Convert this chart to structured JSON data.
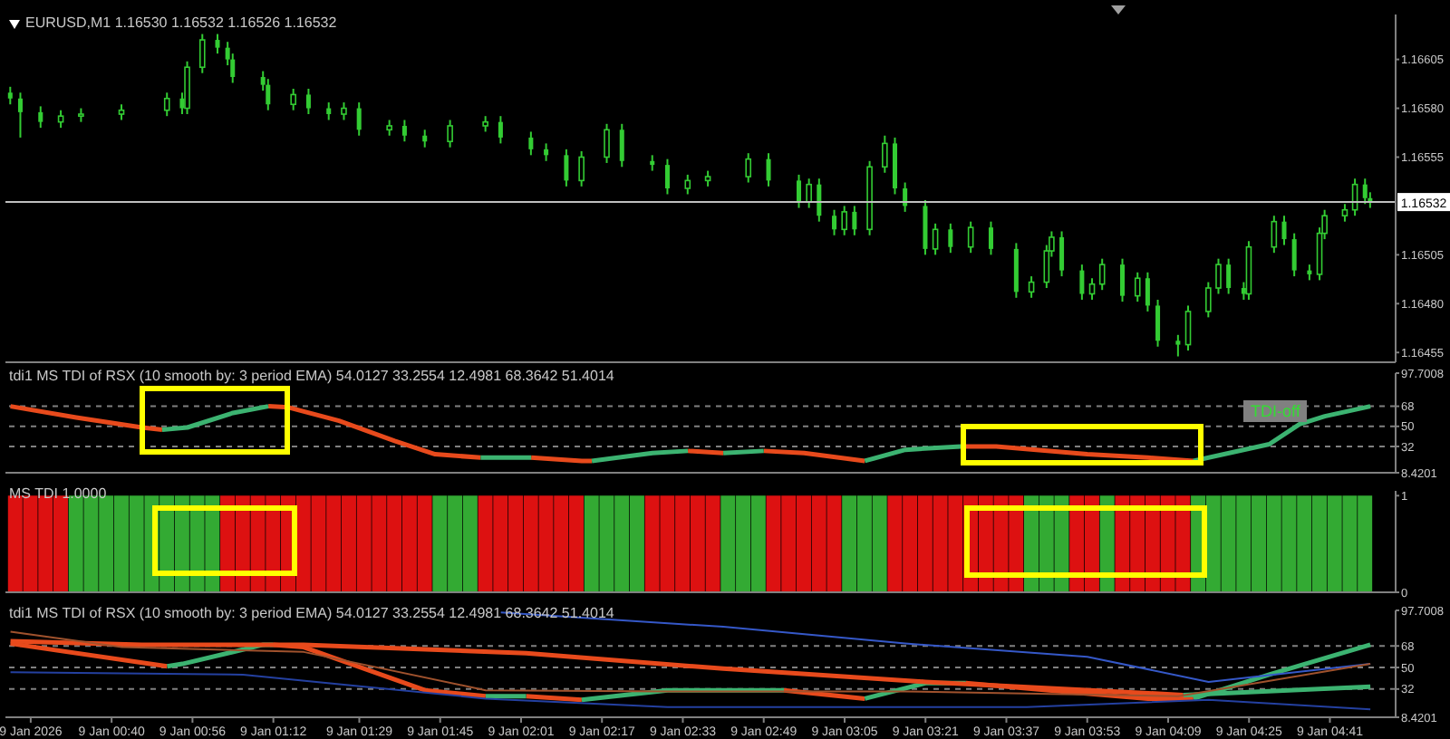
{
  "chart_data": [
    {
      "type": "candlestick",
      "title": "EURUSD,M1 1.16530 1.16532 1.16526 1.16532",
      "color": "#33cc33",
      "xlim": [
        "2026-01-09T00:19",
        "2026-01-09T04:54"
      ],
      "ylim": [
        1.1645,
        1.16628
      ],
      "tick_labels": "y",
      "yticks": [
        1.16455,
        {
          "value": 1.1648,
          "label": "1.16480"
        },
        1.16505,
        1.16555,
        {
          "value": 1.1658,
          "label": "1.16580"
        },
        1.16605
      ],
      "ref_lines": [
        {
          "axis": "y",
          "value": 1.16532,
          "label": "1.16532",
          "color": "#c0c0c0",
          "line_style": "solid"
        }
      ],
      "x": [
        "2026-01-09T00:20",
        "2026-01-09T00:22",
        "2026-01-09T00:26",
        "2026-01-09T00:30",
        "2026-01-09T00:34",
        "2026-01-09T00:42",
        "2026-01-09T00:51",
        "2026-01-09T00:54",
        "2026-01-09T00:55",
        "2026-01-09T00:58",
        "2026-01-09T01:01",
        "2026-01-09T01:03",
        "2026-01-09T01:04",
        "2026-01-09T01:10",
        "2026-01-09T01:11",
        "2026-01-09T01:16",
        "2026-01-09T01:19",
        "2026-01-09T01:23",
        "2026-01-09T01:26",
        "2026-01-09T01:29",
        "2026-01-09T01:35",
        "2026-01-09T01:38",
        "2026-01-09T01:42",
        "2026-01-09T01:47",
        "2026-01-09T01:54",
        "2026-01-09T01:57",
        "2026-01-09T02:03",
        "2026-01-09T02:06",
        "2026-01-09T02:10",
        "2026-01-09T02:13",
        "2026-01-09T02:18",
        "2026-01-09T02:21",
        "2026-01-09T02:27",
        "2026-01-09T02:30",
        "2026-01-09T02:34",
        "2026-01-09T02:38",
        "2026-01-09T02:46",
        "2026-01-09T02:50",
        "2026-01-09T02:56",
        "2026-01-09T02:58",
        "2026-01-09T03:00",
        "2026-01-09T03:03",
        "2026-01-09T03:05",
        "2026-01-09T03:07",
        "2026-01-09T03:10",
        "2026-01-09T03:13",
        "2026-01-09T03:15",
        "2026-01-09T03:17",
        "2026-01-09T03:21",
        "2026-01-09T03:23",
        "2026-01-09T03:26",
        "2026-01-09T03:30",
        "2026-01-09T03:34",
        "2026-01-09T03:39",
        "2026-01-09T03:42",
        "2026-01-09T03:45",
        "2026-01-09T03:46",
        "2026-01-09T03:48",
        "2026-01-09T03:52",
        "2026-01-09T03:54",
        "2026-01-09T03:56",
        "2026-01-09T04:00",
        "2026-01-09T04:03",
        "2026-01-09T04:05",
        "2026-01-09T04:07",
        "2026-01-09T04:11",
        "2026-01-09T04:13",
        "2026-01-09T04:17",
        "2026-01-09T04:19",
        "2026-01-09T04:21",
        "2026-01-09T04:24",
        "2026-01-09T04:25",
        "2026-01-09T04:30",
        "2026-01-09T04:32",
        "2026-01-09T04:34",
        "2026-01-09T04:37",
        "2026-01-09T04:39",
        "2026-01-09T04:40",
        "2026-01-09T04:44",
        "2026-01-09T04:46",
        "2026-01-09T04:48",
        "2026-01-09T04:49"
      ],
      "ohlc": [
        [
          1.16588,
          1.16591,
          1.16582,
          1.16585
        ],
        [
          1.16585,
          1.16588,
          1.16565,
          1.16578
        ],
        [
          1.16578,
          1.16581,
          1.1657,
          1.16573
        ],
        [
          1.16573,
          1.16579,
          1.1657,
          1.16576
        ],
        [
          1.16576,
          1.1658,
          1.16573,
          1.16577
        ],
        [
          1.16577,
          1.16582,
          1.16574,
          1.16579
        ],
        [
          1.16579,
          1.16588,
          1.16576,
          1.16585
        ],
        [
          1.16585,
          1.16588,
          1.16577,
          1.1658
        ],
        [
          1.1658,
          1.16604,
          1.16577,
          1.16601
        ],
        [
          1.16601,
          1.16618,
          1.16598,
          1.16615
        ],
        [
          1.16615,
          1.16618,
          1.16608,
          1.16611
        ],
        [
          1.16611,
          1.16614,
          1.16602,
          1.16605
        ],
        [
          1.16605,
          1.16608,
          1.16593,
          1.16596
        ],
        [
          1.16596,
          1.16599,
          1.16589,
          1.16592
        ],
        [
          1.16592,
          1.16595,
          1.16579,
          1.16582
        ],
        [
          1.16582,
          1.1659,
          1.16579,
          1.16587
        ],
        [
          1.16587,
          1.1659,
          1.16577,
          1.1658
        ],
        [
          1.1658,
          1.16583,
          1.16574,
          1.16577
        ],
        [
          1.16577,
          1.16583,
          1.16574,
          1.1658
        ],
        [
          1.1658,
          1.16583,
          1.16566,
          1.16569
        ],
        [
          1.16569,
          1.16574,
          1.16566,
          1.16571
        ],
        [
          1.16571,
          1.16574,
          1.16563,
          1.16566
        ],
        [
          1.16566,
          1.16569,
          1.1656,
          1.16563
        ],
        [
          1.16563,
          1.16574,
          1.1656,
          1.16571
        ],
        [
          1.16571,
          1.16576,
          1.16568,
          1.16573
        ],
        [
          1.16573,
          1.16576,
          1.16562,
          1.16565
        ],
        [
          1.16565,
          1.16568,
          1.16556,
          1.16559
        ],
        [
          1.16559,
          1.16562,
          1.16553,
          1.16556
        ],
        [
          1.16556,
          1.16559,
          1.1654,
          1.16543
        ],
        [
          1.16543,
          1.16558,
          1.1654,
          1.16555
        ],
        [
          1.16555,
          1.16572,
          1.16552,
          1.16569
        ],
        [
          1.16569,
          1.16572,
          1.1655,
          1.16553
        ],
        [
          1.16553,
          1.16556,
          1.16548,
          1.16551
        ],
        [
          1.16551,
          1.16554,
          1.16536,
          1.16539
        ],
        [
          1.16539,
          1.16546,
          1.16536,
          1.16543
        ],
        [
          1.16543,
          1.16548,
          1.1654,
          1.16545
        ],
        [
          1.16545,
          1.16557,
          1.16542,
          1.16554
        ],
        [
          1.16554,
          1.16557,
          1.1654,
          1.16543
        ],
        [
          1.16543,
          1.16546,
          1.16529,
          1.16532
        ],
        [
          1.16532,
          1.16544,
          1.16529,
          1.16541
        ],
        [
          1.16541,
          1.16544,
          1.16522,
          1.16525
        ],
        [
          1.16525,
          1.16528,
          1.16515,
          1.16518
        ],
        [
          1.16518,
          1.1653,
          1.16515,
          1.16527
        ],
        [
          1.16527,
          1.1653,
          1.16515,
          1.16518
        ],
        [
          1.16518,
          1.16553,
          1.16515,
          1.1655
        ],
        [
          1.1655,
          1.16566,
          1.16547,
          1.16562
        ],
        [
          1.16562,
          1.16565,
          1.16536,
          1.16539
        ],
        [
          1.16539,
          1.16542,
          1.16527,
          1.1653
        ],
        [
          1.1653,
          1.16533,
          1.16505,
          1.16508
        ],
        [
          1.16508,
          1.16521,
          1.16505,
          1.16518
        ],
        [
          1.16518,
          1.16521,
          1.16506,
          1.16509
        ],
        [
          1.16509,
          1.16522,
          1.16506,
          1.16519
        ],
        [
          1.16519,
          1.16522,
          1.16505,
          1.16508
        ],
        [
          1.16508,
          1.16511,
          1.16483,
          1.16486
        ],
        [
          1.16486,
          1.16494,
          1.16483,
          1.16491
        ],
        [
          1.16491,
          1.1651,
          1.16488,
          1.16507
        ],
        [
          1.16507,
          1.16517,
          1.16504,
          1.16514
        ],
        [
          1.16514,
          1.16517,
          1.16494,
          1.16497
        ],
        [
          1.16497,
          1.165,
          1.16482,
          1.16485
        ],
        [
          1.16485,
          1.16493,
          1.16482,
          1.1649
        ],
        [
          1.1649,
          1.16503,
          1.16487,
          1.165
        ],
        [
          1.165,
          1.16503,
          1.16481,
          1.16484
        ],
        [
          1.16484,
          1.16496,
          1.16481,
          1.16493
        ],
        [
          1.16493,
          1.16496,
          1.16476,
          1.16479
        ],
        [
          1.16479,
          1.16482,
          1.16458,
          1.16461
        ],
        [
          1.16461,
          1.16464,
          1.16453,
          1.16459
        ],
        [
          1.16459,
          1.16479,
          1.16456,
          1.16476
        ],
        [
          1.16476,
          1.16491,
          1.16473,
          1.16488
        ],
        [
          1.16488,
          1.16503,
          1.16485,
          1.165
        ],
        [
          1.165,
          1.16503,
          1.16485,
          1.16488
        ],
        [
          1.16488,
          1.16491,
          1.16482,
          1.16485
        ],
        [
          1.16485,
          1.16512,
          1.16482,
          1.16509
        ],
        [
          1.16509,
          1.16525,
          1.16506,
          1.16522
        ],
        [
          1.16522,
          1.16525,
          1.1651,
          1.16513
        ],
        [
          1.16513,
          1.16516,
          1.16494,
          1.16497
        ],
        [
          1.16497,
          1.165,
          1.16492,
          1.16495
        ],
        [
          1.16495,
          1.16519,
          1.16492,
          1.16516
        ],
        [
          1.16516,
          1.16528,
          1.16513,
          1.16525
        ],
        [
          1.16525,
          1.16531,
          1.16522,
          1.16528
        ],
        [
          1.16528,
          1.16544,
          1.16525,
          1.16541
        ],
        [
          1.16541,
          1.16544,
          1.16531,
          1.16534
        ],
        [
          1.16534,
          1.16537,
          1.16529,
          1.16532
        ]
      ]
    },
    {
      "type": "line",
      "title": "tdi1 MS TDI of RSX (10 smooth by: 3 period EMA) 54.0127 33.2554 12.4981 68.3642 51.4014",
      "xlim": [
        "2026-01-09T00:19",
        "2026-01-09T04:54"
      ],
      "ylim": [
        8.4201,
        97.7008
      ],
      "yticks": [
        8.4201,
        32,
        50,
        68,
        97.7008
      ],
      "tick_labels": "y",
      "annotations": [
        "TDI-off"
      ],
      "ref_lines": [
        {
          "axis": "y",
          "value": 68,
          "color": "#808080",
          "line_style": "dashed"
        },
        {
          "axis": "y",
          "value": 50,
          "color": "#808080",
          "line_style": "dashed"
        },
        {
          "axis": "y",
          "value": 32,
          "color": "#808080",
          "line_style": "dashed"
        }
      ],
      "series": [
        {
          "color": "#e84a1c",
          "x": [
            "2026-01-09T00:20",
            "2026-01-09T00:33",
            "2026-01-09T00:46",
            "2026-01-09T00:50",
            "2026-01-09T00:54",
            "2026-01-09T01:11",
            "2026-01-09T01:15",
            "2026-01-09T01:25",
            "2026-01-09T01:36",
            "2026-01-09T01:44",
            "2026-01-09T01:53",
            "2026-01-09T01:57",
            "2026-01-09T02:03",
            "2026-01-09T02:13",
            "2026-01-09T02:15",
            "2026-01-09T02:18",
            "2026-01-09T02:34",
            "2026-01-09T02:41",
            "2026-01-09T02:45",
            "2026-01-09T02:49",
            "2026-01-09T02:57",
            "2026-01-09T03:09",
            "2026-01-09T03:12",
            "2026-01-09T03:28",
            "2026-01-09T03:35",
            "2026-01-09T03:53",
            "2026-01-09T04:05",
            "2026-01-09T04:14"
          ],
          "values": [
            68,
            58,
            49,
            47,
            null,
            68,
            67,
            55,
            37,
            25,
            22,
            null,
            22,
            19,
            19,
            null,
            28,
            26,
            null,
            28,
            26,
            19,
            null,
            32,
            32,
            25,
            22,
            19
          ]
        },
        {
          "color": "#3cb371",
          "x": [
            "2026-01-09T00:50",
            "2026-01-09T00:55",
            "2026-01-09T01:04",
            "2026-01-09T01:11",
            "2026-01-09T01:30",
            "2026-01-09T01:53",
            "2026-01-09T02:03",
            "2026-01-09T02:06",
            "2026-01-09T02:15",
            "2026-01-09T02:27",
            "2026-01-09T02:34",
            "2026-01-09T02:37",
            "2026-01-09T02:41",
            "2026-01-09T02:49",
            "2026-01-09T02:54",
            "2026-01-09T03:09",
            "2026-01-09T03:17",
            "2026-01-09T03:28",
            "2026-01-09T03:42",
            "2026-01-09T04:14",
            "2026-01-09T04:29",
            "2026-01-09T04:35",
            "2026-01-09T04:40",
            "2026-01-09T04:49"
          ],
          "values": [
            47,
            49,
            62,
            68,
            null,
            22,
            22,
            null,
            19,
            26,
            28,
            null,
            26,
            28,
            null,
            19,
            29,
            32,
            null,
            19,
            34,
            52,
            59,
            68
          ]
        }
      ]
    },
    {
      "type": "bar",
      "title": "MS TDI 1.0000",
      "xlim": [
        "2026-01-09T00:19",
        "2026-01-09T04:54"
      ],
      "ylim": [
        0,
        1.05
      ],
      "yticks": [
        0,
        1
      ],
      "tick_labels": "y",
      "x": [
        "2026-01-09T00:21",
        "2026-01-09T00:24",
        "2026-01-09T00:27",
        "2026-01-09T00:30",
        "2026-01-09T00:33",
        "2026-01-09T00:36",
        "2026-01-09T00:39",
        "2026-01-09T00:42",
        "2026-01-09T00:45",
        "2026-01-09T00:48",
        "2026-01-09T00:51",
        "2026-01-09T00:54",
        "2026-01-09T00:57",
        "2026-01-09T01:00",
        "2026-01-09T01:03",
        "2026-01-09T01:06",
        "2026-01-09T01:09",
        "2026-01-09T01:12",
        "2026-01-09T01:15",
        "2026-01-09T01:18",
        "2026-01-09T01:21",
        "2026-01-09T01:24",
        "2026-01-09T01:27",
        "2026-01-09T01:30",
        "2026-01-09T01:33",
        "2026-01-09T01:36",
        "2026-01-09T01:39",
        "2026-01-09T01:42",
        "2026-01-09T01:45",
        "2026-01-09T01:48",
        "2026-01-09T01:51",
        "2026-01-09T01:54",
        "2026-01-09T01:57",
        "2026-01-09T02:00",
        "2026-01-09T02:03",
        "2026-01-09T02:06",
        "2026-01-09T02:09",
        "2026-01-09T02:12",
        "2026-01-09T02:15",
        "2026-01-09T02:18",
        "2026-01-09T02:21",
        "2026-01-09T02:24",
        "2026-01-09T02:27",
        "2026-01-09T02:30",
        "2026-01-09T02:33",
        "2026-01-09T02:36",
        "2026-01-09T02:39",
        "2026-01-09T02:42",
        "2026-01-09T02:45",
        "2026-01-09T02:48",
        "2026-01-09T02:51",
        "2026-01-09T02:54",
        "2026-01-09T02:57",
        "2026-01-09T03:00",
        "2026-01-09T03:03",
        "2026-01-09T03:06",
        "2026-01-09T03:09",
        "2026-01-09T03:12",
        "2026-01-09T03:15",
        "2026-01-09T03:18",
        "2026-01-09T03:21",
        "2026-01-09T03:24",
        "2026-01-09T03:27",
        "2026-01-09T03:30",
        "2026-01-09T03:33",
        "2026-01-09T03:36",
        "2026-01-09T03:39",
        "2026-01-09T03:42",
        "2026-01-09T03:45",
        "2026-01-09T03:48",
        "2026-01-09T03:51",
        "2026-01-09T03:54",
        "2026-01-09T03:57",
        "2026-01-09T04:00",
        "2026-01-09T04:03",
        "2026-01-09T04:06",
        "2026-01-09T04:09",
        "2026-01-09T04:12",
        "2026-01-09T04:15",
        "2026-01-09T04:18",
        "2026-01-09T04:21",
        "2026-01-09T04:24",
        "2026-01-09T04:27",
        "2026-01-09T04:30",
        "2026-01-09T04:33",
        "2026-01-09T04:36",
        "2026-01-09T04:39",
        "2026-01-09T04:42",
        "2026-01-09T04:45",
        "2026-01-09T04:48"
      ],
      "values": [
        1,
        1,
        1,
        1,
        1,
        1,
        1,
        1,
        1,
        1,
        1,
        1,
        1,
        1,
        1,
        1,
        1,
        1,
        1,
        1,
        1,
        1,
        1,
        1,
        1,
        1,
        1,
        1,
        1,
        1,
        1,
        1,
        1,
        1,
        1,
        1,
        1,
        1,
        1,
        1,
        1,
        1,
        1,
        1,
        1,
        1,
        1,
        1,
        1,
        1,
        1,
        1,
        1,
        1,
        1,
        1,
        1,
        1,
        1,
        1,
        1,
        1,
        1,
        1,
        1,
        1,
        1,
        1,
        1,
        1,
        1,
        1,
        1,
        1,
        1,
        1,
        1,
        1,
        1,
        1,
        1,
        1,
        1,
        1,
        1,
        1,
        1,
        1,
        1,
        1
      ],
      "colors": [
        "#dd1111",
        "#dd1111",
        "#dd1111",
        "#dd1111",
        "#33aa33",
        "#33aa33",
        "#33aa33",
        "#33aa33",
        "#33aa33",
        "#33aa33",
        "#33aa33",
        "#33aa33",
        "#33aa33",
        "#33aa33",
        "#dd1111",
        "#dd1111",
        "#dd1111",
        "#dd1111",
        "#dd1111",
        "#dd1111",
        "#dd1111",
        "#dd1111",
        "#dd1111",
        "#dd1111",
        "#dd1111",
        "#dd1111",
        "#dd1111",
        "#dd1111",
        "#33aa33",
        "#33aa33",
        "#33aa33",
        "#dd1111",
        "#dd1111",
        "#dd1111",
        "#dd1111",
        "#dd1111",
        "#dd1111",
        "#dd1111",
        "#33aa33",
        "#33aa33",
        "#33aa33",
        "#33aa33",
        "#dd1111",
        "#dd1111",
        "#dd1111",
        "#dd1111",
        "#dd1111",
        "#33aa33",
        "#33aa33",
        "#33aa33",
        "#dd1111",
        "#dd1111",
        "#dd1111",
        "#dd1111",
        "#dd1111",
        "#33aa33",
        "#33aa33",
        "#33aa33",
        "#dd1111",
        "#dd1111",
        "#dd1111",
        "#dd1111",
        "#dd1111",
        "#dd1111",
        "#dd1111",
        "#dd1111",
        "#dd1111",
        "#33aa33",
        "#33aa33",
        "#33aa33",
        "#dd1111",
        "#dd1111",
        "#33aa33",
        "#dd1111",
        "#dd1111",
        "#dd1111",
        "#dd1111",
        "#dd1111",
        "#33aa33",
        "#33aa33",
        "#33aa33",
        "#33aa33",
        "#33aa33",
        "#33aa33",
        "#33aa33",
        "#33aa33",
        "#33aa33",
        "#33aa33",
        "#33aa33",
        "#33aa33"
      ]
    },
    {
      "type": "line",
      "title": "tdi1 MS TDI of RSX (10 smooth by: 3 period EMA) 54.0127 33.2554 12.4981 68.3642 51.4014",
      "xlim": [
        "2026-01-09T00:19",
        "2026-01-09T04:54"
      ],
      "ylim": [
        8.4201,
        97.7008
      ],
      "yticks": [
        8.4201,
        32,
        50,
        68,
        97.7008
      ],
      "xticks": [
        {
          "value": "2026-01-09T00:24",
          "label": "9 Jan 2026"
        },
        {
          "value": "2026-01-09T00:40",
          "label": "9 Jan 00:40"
        },
        {
          "value": "2026-01-09T00:56",
          "label": "9 Jan 00:56"
        },
        {
          "value": "2026-01-09T01:12",
          "label": "9 Jan 01:12"
        },
        {
          "value": "2026-01-09T01:29",
          "label": "9 Jan 01:29"
        },
        {
          "value": "2026-01-09T01:45",
          "label": "9 Jan 01:45"
        },
        {
          "value": "2026-01-09T02:01",
          "label": "9 Jan 02:01"
        },
        {
          "value": "2026-01-09T02:17",
          "label": "9 Jan 02:17"
        },
        {
          "value": "2026-01-09T02:33",
          "label": "9 Jan 02:33"
        },
        {
          "value": "2026-01-09T02:49",
          "label": "9 Jan 02:49"
        },
        {
          "value": "2026-01-09T03:05",
          "label": "9 Jan 03:05"
        },
        {
          "value": "2026-01-09T03:21",
          "label": "9 Jan 03:21"
        },
        {
          "value": "2026-01-09T03:37",
          "label": "9 Jan 03:37"
        },
        {
          "value": "2026-01-09T03:53",
          "label": "9 Jan 03:53"
        },
        {
          "value": "2026-01-09T04:09",
          "label": "9 Jan 04:09"
        },
        {
          "value": "2026-01-09T04:25",
          "label": "9 Jan 04:25"
        },
        {
          "value": "2026-01-09T04:41",
          "label": "9 Jan 04:41"
        }
      ],
      "ref_lines": [
        {
          "axis": "y",
          "value": 68,
          "color": "#808080",
          "line_style": "dashed"
        },
        {
          "axis": "y",
          "value": 50,
          "color": "#808080",
          "line_style": "dashed"
        },
        {
          "axis": "y",
          "value": 32,
          "color": "#808080",
          "line_style": "dashed"
        }
      ],
      "series": [
        {
          "color": "#e84a1c",
          "x": [
            "2026-01-09T00:20",
            "2026-01-09T00:51",
            "2026-01-09T00:52",
            "2026-01-09T01:12",
            "2026-01-09T01:18",
            "2026-01-09T01:30",
            "2026-01-09T01:42",
            "2026-01-09T01:54",
            "2026-01-09T01:57",
            "2026-01-09T02:02",
            "2026-01-09T02:13",
            "2026-01-09T02:18",
            "2026-01-09T02:53",
            "2026-01-09T03:09",
            "2026-01-09T03:15",
            "2026-01-09T03:29",
            "2026-01-09T03:48",
            "2026-01-09T04:05",
            "2026-01-09T04:14"
          ],
          "values": [
            70,
            51,
            null,
            69,
            67,
            49,
            31,
            26,
            null,
            26,
            23,
            null,
            31,
            24,
            null,
            37,
            30,
            24,
            24
          ]
        },
        {
          "color": "#3cb371",
          "x": [
            "2026-01-09T00:51",
            "2026-01-09T00:54",
            "2026-01-09T01:10",
            "2026-01-09T01:12",
            "2026-01-09T01:30",
            "2026-01-09T01:54",
            "2026-01-09T02:02",
            "2026-01-09T02:06",
            "2026-01-09T02:13",
            "2026-01-09T02:30",
            "2026-01-09T02:41",
            "2026-01-09T02:53",
            "2026-01-09T03:00",
            "2026-01-09T03:09",
            "2026-01-09T03:21",
            "2026-01-09T03:29",
            "2026-01-09T03:42",
            "2026-01-09T04:14",
            "2026-01-09T04:29",
            "2026-01-09T04:49"
          ],
          "values": [
            51,
            53,
            69,
            69,
            null,
            26,
            26,
            null,
            23,
            31,
            31,
            31,
            null,
            24,
            37,
            37,
            null,
            24,
            44,
            69
          ]
        },
        {
          "color": "#e84a1c",
          "x": [
            "2026-01-09T00:20",
            "2026-01-09T00:46",
            "2026-01-09T01:18",
            "2026-01-09T02:02",
            "2026-01-09T02:41",
            "2026-01-09T03:21",
            "2026-01-09T04:12"
          ],
          "values": [
            72,
            69,
            69,
            62,
            49,
            38,
            27
          ]
        },
        {
          "color": "#3cb371",
          "x": [
            "2026-01-09T04:12",
            "2026-01-09T04:49"
          ],
          "values": [
            27,
            34
          ]
        },
        {
          "color": "#3558c8",
          "x": [
            "2026-01-09T01:57",
            "2026-01-09T02:41",
            "2026-01-09T03:17",
            "2026-01-09T03:53",
            "2026-01-09T04:17",
            "2026-01-09T04:49"
          ],
          "values": [
            96,
            84,
            70,
            59,
            38,
            53
          ]
        },
        {
          "color": "#2440a0",
          "x": [
            "2026-01-09T00:20",
            "2026-01-09T01:06",
            "2026-01-09T01:30",
            "2026-01-09T01:54",
            "2026-01-09T02:30",
            "2026-01-09T03:05",
            "2026-01-09T03:41",
            "2026-01-09T04:17",
            "2026-01-09T04:49"
          ],
          "values": [
            46,
            44,
            34,
            24,
            17,
            17,
            17,
            23,
            15
          ]
        },
        {
          "color": "#a0522d",
          "x": [
            "2026-01-09T00:20",
            "2026-01-09T00:42",
            "2026-01-09T01:18",
            "2026-01-09T01:54",
            "2026-01-09T02:30",
            "2026-01-09T03:17",
            "2026-01-09T04:11",
            "2026-01-09T04:49"
          ],
          "values": [
            80,
            67,
            63,
            31,
            30,
            30,
            26,
            53
          ]
        }
      ]
    }
  ]
}
